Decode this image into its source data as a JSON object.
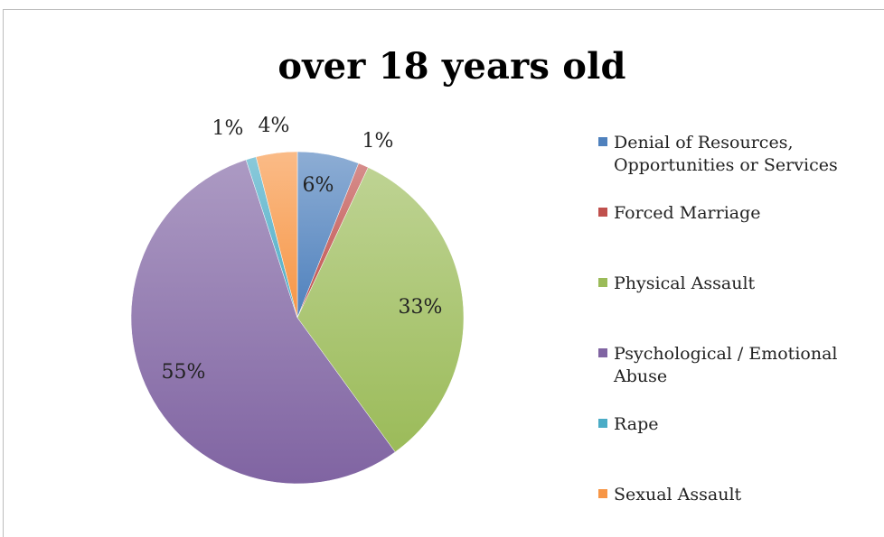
{
  "chart_data": {
    "type": "pie",
    "title": "over 18 years old",
    "categories": [
      "Denial of Resources, Opportunities or Services",
      "Forced Marriage",
      "Physical Assault",
      "Psychological / Emotional Abuse",
      "Rape",
      "Sexual Assault"
    ],
    "legend_labels": [
      "Denial of Resources,\nOpportunities or Services",
      "Forced Marriage",
      "Physical Assault",
      "Psychological / Emotional\nAbuse",
      "Rape",
      "Sexual Assault"
    ],
    "values": [
      6,
      1,
      33,
      55,
      1,
      4
    ],
    "data_labels": [
      "6%",
      "1%",
      "33%",
      "55%",
      "1%",
      "4%"
    ],
    "colors": [
      "#4F81BD",
      "#C0504D",
      "#9BBB59",
      "#8064A2",
      "#4BACC6",
      "#F79646"
    ],
    "legend_position": "right",
    "start_angle": "12 o'clock, clockwise"
  }
}
